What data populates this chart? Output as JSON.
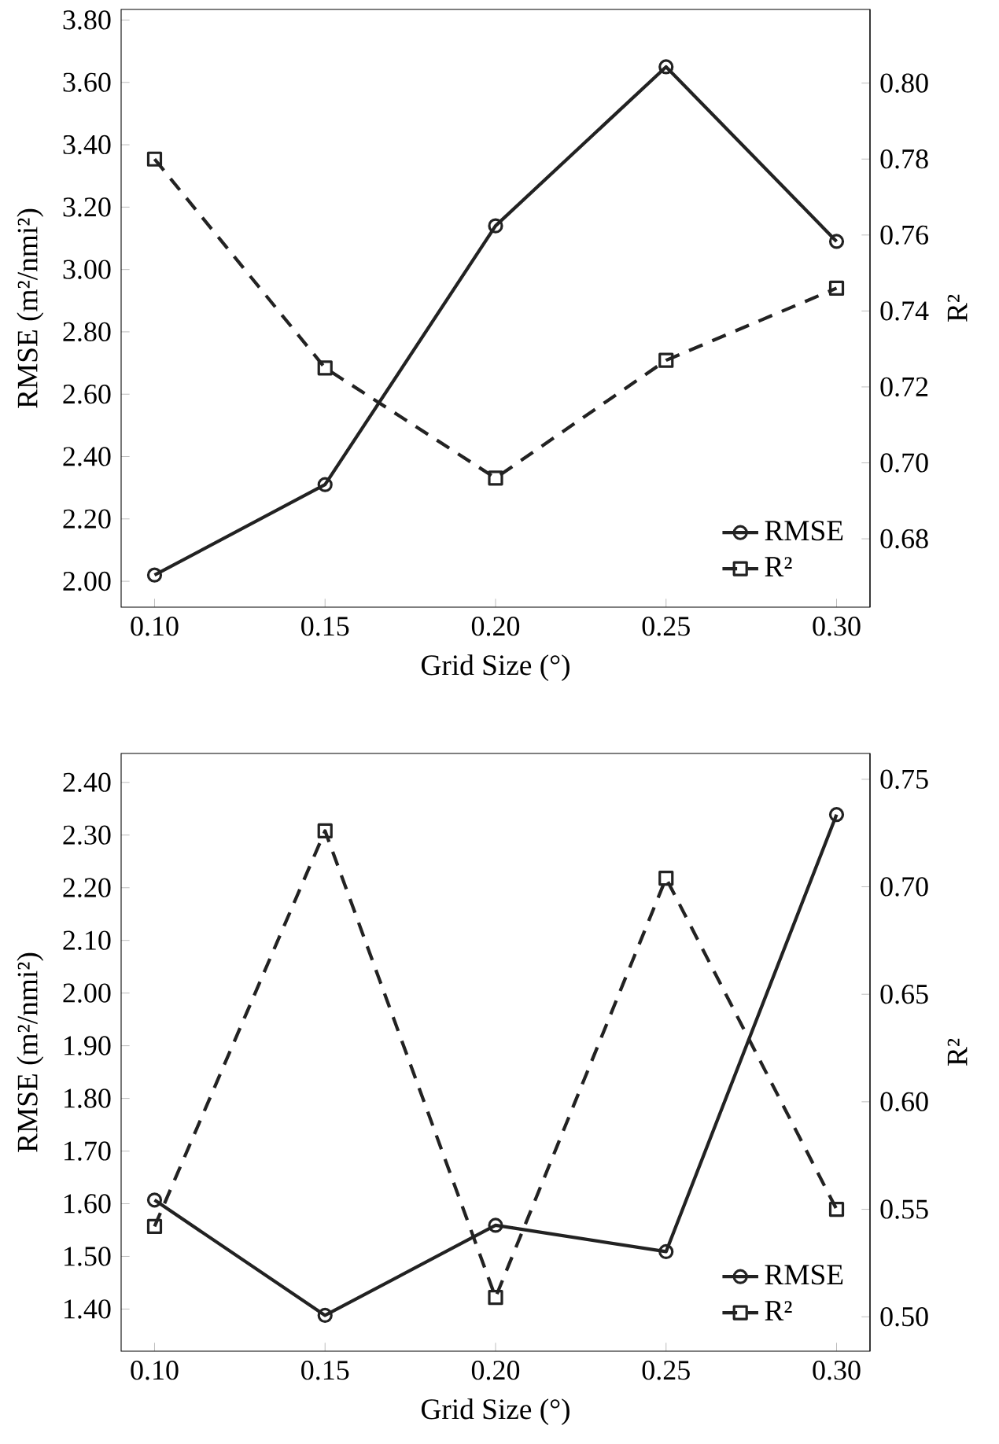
{
  "chart_data": [
    {
      "type": "line",
      "xlabel": "Grid Size (°)",
      "ylabel": "RMSE (m²/nmi²)",
      "y2label": "R²",
      "x": [
        0.1,
        0.15,
        0.2,
        0.25,
        0.3
      ],
      "xlim": [
        0.0902,
        0.3098
      ],
      "xticks": [
        {
          "value": 0.1,
          "label": "0.10"
        },
        {
          "value": 0.15,
          "label": "0.15"
        },
        {
          "value": 0.2,
          "label": "0.20"
        },
        {
          "value": 0.25,
          "label": "0.25"
        },
        {
          "value": 0.3,
          "label": "0.30"
        }
      ],
      "ylim": [
        1.917,
        3.834
      ],
      "yticks": [
        {
          "value": 2.0,
          "label": "2.00"
        },
        {
          "value": 2.2,
          "label": "2.20"
        },
        {
          "value": 2.4,
          "label": "2.40"
        },
        {
          "value": 2.6,
          "label": "2.60"
        },
        {
          "value": 2.8,
          "label": "2.80"
        },
        {
          "value": 3.0,
          "label": "3.00"
        },
        {
          "value": 3.2,
          "label": "3.20"
        },
        {
          "value": 3.4,
          "label": "3.40"
        },
        {
          "value": 3.6,
          "label": "3.60"
        },
        {
          "value": 3.8,
          "label": "3.80"
        }
      ],
      "y2lim": [
        0.662,
        0.8194
      ],
      "y2ticks": [
        {
          "value": 0.68,
          "label": "0.68"
        },
        {
          "value": 0.7,
          "label": "0.70"
        },
        {
          "value": 0.72,
          "label": "0.72"
        },
        {
          "value": 0.74,
          "label": "0.74"
        },
        {
          "value": 0.76,
          "label": "0.76"
        },
        {
          "value": 0.78,
          "label": "0.78"
        },
        {
          "value": 0.8,
          "label": "0.80"
        }
      ],
      "legend": "bottom right",
      "grid": false,
      "series": [
        {
          "name": "RMSE",
          "color": "#222222",
          "marker": "circle",
          "line_style": "solid",
          "values": [
            2.02,
            2.31,
            3.14,
            3.65,
            3.09
          ]
        },
        {
          "name": "R²",
          "color": "#222222",
          "marker": "square",
          "line_style": "dashed",
          "axis": "y2",
          "values": [
            0.78,
            0.725,
            0.696,
            0.727,
            0.746
          ]
        }
      ]
    },
    {
      "type": "line",
      "xlabel": "Grid Size (°)",
      "ylabel": "RMSE (m²/nmi²)",
      "y2label": "R²",
      "x": [
        0.1,
        0.15,
        0.2,
        0.25,
        0.3
      ],
      "xlim": [
        0.0902,
        0.3098
      ],
      "xticks": [
        {
          "value": 0.1,
          "label": "0.10"
        },
        {
          "value": 0.15,
          "label": "0.15"
        },
        {
          "value": 0.2,
          "label": "0.20"
        },
        {
          "value": 0.25,
          "label": "0.25"
        },
        {
          "value": 0.3,
          "label": "0.30"
        }
      ],
      "ylim": [
        1.32,
        2.455
      ],
      "yticks": [
        {
          "value": 1.4,
          "label": "1.40"
        },
        {
          "value": 1.5,
          "label": "1.50"
        },
        {
          "value": 1.6,
          "label": "1.60"
        },
        {
          "value": 1.7,
          "label": "1.70"
        },
        {
          "value": 1.8,
          "label": "1.80"
        },
        {
          "value": 1.9,
          "label": "1.90"
        },
        {
          "value": 2.0,
          "label": "2.00"
        },
        {
          "value": 2.1,
          "label": "2.10"
        },
        {
          "value": 2.2,
          "label": "2.20"
        },
        {
          "value": 2.3,
          "label": "2.30"
        },
        {
          "value": 2.4,
          "label": "2.40"
        }
      ],
      "y2lim": [
        0.484,
        0.762
      ],
      "y2ticks": [
        {
          "value": 0.5,
          "label": "0.50"
        },
        {
          "value": 0.55,
          "label": "0.55"
        },
        {
          "value": 0.6,
          "label": "0.60"
        },
        {
          "value": 0.65,
          "label": "0.65"
        },
        {
          "value": 0.7,
          "label": "0.70"
        },
        {
          "value": 0.75,
          "label": "0.75"
        }
      ],
      "legend": "bottom right",
      "grid": false,
      "series": [
        {
          "name": "RMSE",
          "color": "#222222",
          "marker": "circle",
          "line_style": "solid",
          "values": [
            1.607,
            1.388,
            1.559,
            1.509,
            2.339
          ]
        },
        {
          "name": "R²",
          "color": "#222222",
          "marker": "square",
          "line_style": "dashed",
          "axis": "y2",
          "values": [
            0.542,
            0.726,
            0.509,
            0.704,
            0.55
          ]
        }
      ]
    }
  ]
}
